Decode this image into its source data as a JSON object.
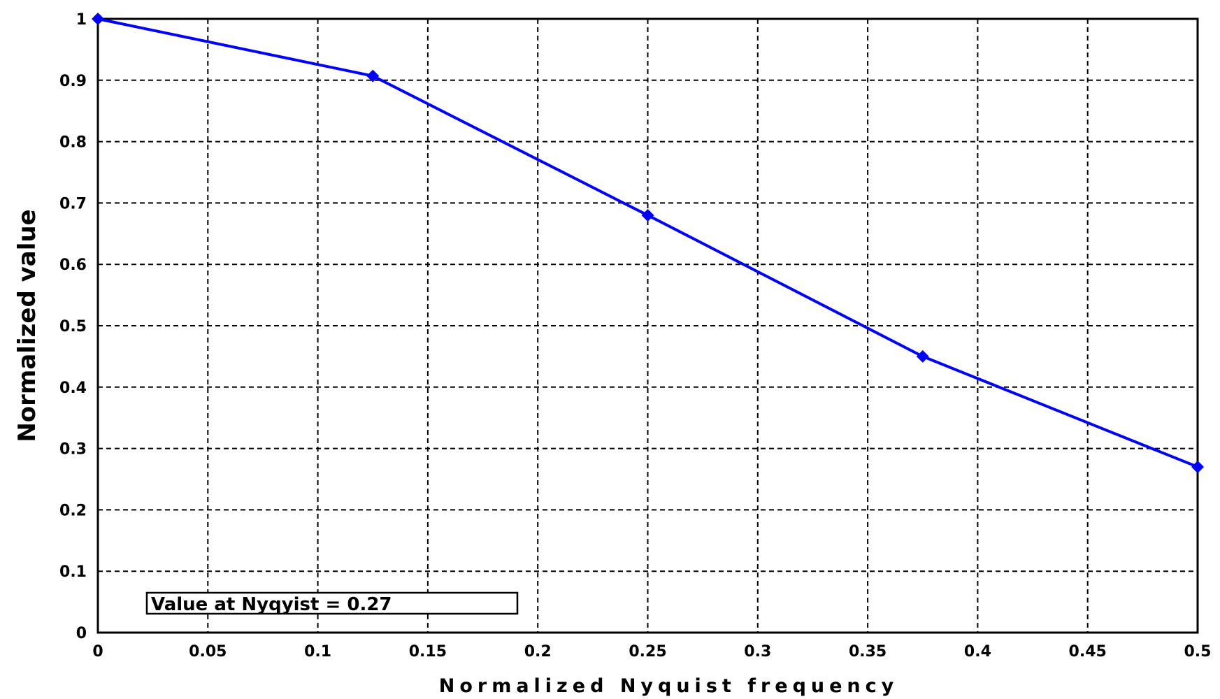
{
  "chart_data": {
    "type": "line",
    "title": "",
    "xlabel": "Normalized Nyquist frequency",
    "ylabel": "Normalized value",
    "xlim": [
      0,
      0.5
    ],
    "ylim": [
      0,
      1
    ],
    "x_ticks": [
      "0",
      "0.05",
      "0.1",
      "0.15",
      "0.2",
      "0.25",
      "0.3",
      "0.35",
      "0.4",
      "0.45",
      "0.5"
    ],
    "y_ticks": [
      "0",
      "0.1",
      "0.2",
      "0.3",
      "0.4",
      "0.5",
      "0.6",
      "0.7",
      "0.8",
      "0.9",
      "1"
    ],
    "grid": true,
    "grid_style": "dashed",
    "line_color": "#0000ff",
    "series": [
      {
        "x": [
          0,
          0.125,
          0.25,
          0.375,
          0.5
        ],
        "values": [
          1.0,
          0.907,
          0.68,
          0.45,
          0.27
        ]
      }
    ],
    "annotation": "Value at Nyqyist = 0.27"
  }
}
